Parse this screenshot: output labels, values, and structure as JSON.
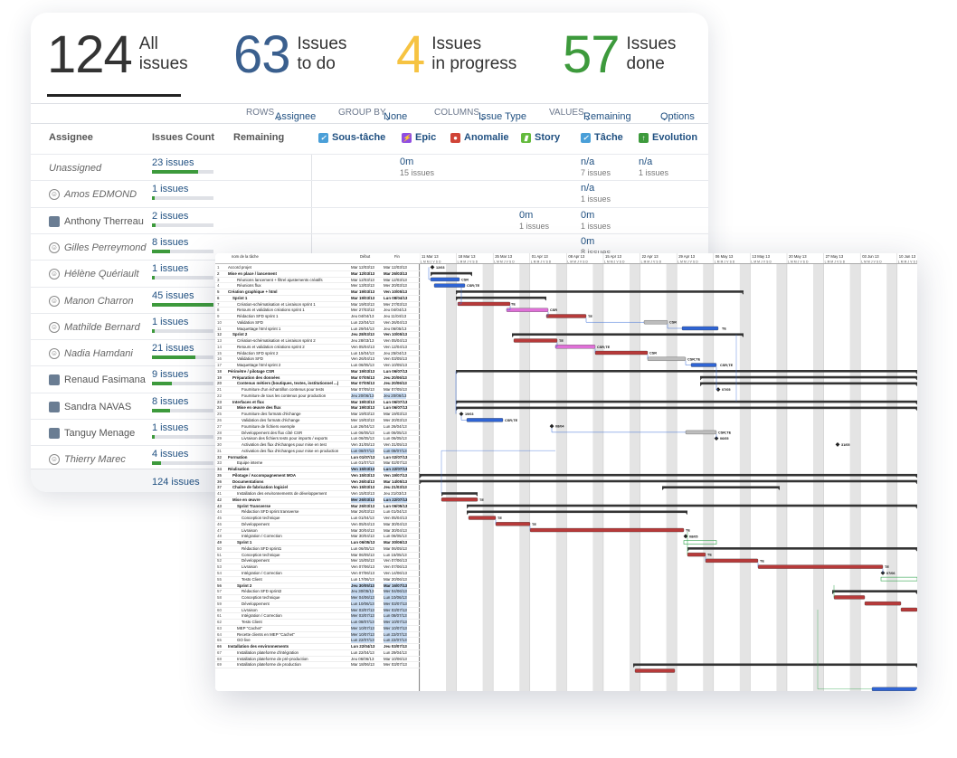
{
  "stats": {
    "all": {
      "num": "124",
      "l1": "All",
      "l2": "issues"
    },
    "todo": {
      "num": "63",
      "l1": "Issues",
      "l2": "to do"
    },
    "progress": {
      "num": "4",
      "l1": "Issues",
      "l2": "in progress"
    },
    "done": {
      "num": "57",
      "l1": "Issues",
      "l2": "done"
    }
  },
  "controls": {
    "rows_label": "ROWS",
    "rows_value": "Assignee",
    "group_label": "GROUP BY",
    "group_value": "None",
    "columns_label": "COLUMNS",
    "columns_value": "Issue Type",
    "values_label": "VALUES",
    "values_value": "Remaining",
    "options": "Options"
  },
  "table": {
    "h_assignee": "Assignee",
    "h_count": "Issues Count",
    "h_remaining": "Remaining",
    "types": [
      "Sous-tâche",
      "Epic",
      "Anomalie",
      "Story",
      "Tâche",
      "Evolution"
    ],
    "type_colors": [
      "#4a9fd8",
      "#904ee2",
      "#d04437",
      "#63ba3c",
      "#4a9fd8",
      "#3d9a3c"
    ],
    "rows": [
      {
        "name": "Unassigned",
        "count": "23 issues",
        "pct": 0.75,
        "italic": true,
        "avatar": "none"
      },
      {
        "name": "Amos EDMOND",
        "count": "1 issues",
        "pct": 0.04,
        "italic": true,
        "avatar": "default"
      },
      {
        "name": "Anthony Therreau",
        "count": "2 issues",
        "pct": 0.06,
        "italic": false,
        "avatar": "photo"
      },
      {
        "name": "Gilles Perreymond",
        "count": "8 issues",
        "pct": 0.3,
        "italic": true,
        "avatar": "default"
      },
      {
        "name": "Hélène Quériault",
        "count": "1 issues",
        "pct": 0.04,
        "italic": true,
        "avatar": "default"
      },
      {
        "name": "Manon Charron",
        "count": "45 issues",
        "pct": 1.0,
        "italic": true,
        "avatar": "default"
      },
      {
        "name": "Mathilde Bernard",
        "count": "1 issues",
        "pct": 0.04,
        "italic": true,
        "avatar": "default"
      },
      {
        "name": "Nadia Hamdani",
        "count": "21 issues",
        "pct": 0.7,
        "italic": true,
        "avatar": "default"
      },
      {
        "name": "Renaud Fasimana",
        "count": "9 issues",
        "pct": 0.32,
        "italic": false,
        "avatar": "photo"
      },
      {
        "name": "Sandra NAVAS",
        "count": "8 issues",
        "pct": 0.3,
        "italic": false,
        "avatar": "photo"
      },
      {
        "name": "Tanguy Menage",
        "count": "1 issues",
        "pct": 0.04,
        "italic": false,
        "avatar": "photo"
      },
      {
        "name": "Thierry Marec",
        "count": "4 issues",
        "pct": 0.15,
        "italic": true,
        "avatar": "default"
      }
    ],
    "cells": [
      {
        "row": 0,
        "col": "epic",
        "v": "0m",
        "s": "15 issues"
      },
      {
        "row": 0,
        "col": "tache",
        "v": "n/a",
        "s": "7 issues"
      },
      {
        "row": 0,
        "col": "evolution",
        "v": "n/a",
        "s": "1 issues"
      },
      {
        "row": 1,
        "col": "tache",
        "v": "n/a",
        "s": "1 issues"
      },
      {
        "row": 2,
        "col": "story",
        "v": "0m",
        "s": "1 issues"
      },
      {
        "row": 2,
        "col": "tache",
        "v": "0m",
        "s": "1 issues"
      },
      {
        "row": 3,
        "col": "tache",
        "v": "0m",
        "s": "8 issues"
      }
    ],
    "total": "124 issues"
  },
  "gantt": {
    "h_name": "nom de la tâche",
    "h_start": "Début",
    "h_end": "Fin",
    "weeks": [
      "11 Mar 13",
      "18 Mar 13",
      "25 Mar 13",
      "01 Apr 13",
      "08 Apr 13",
      "15 Apr 13",
      "22 Apr 13",
      "29 Apr 13",
      "06 May 13",
      "13 May 13",
      "20 May 13",
      "27 May 13",
      "03 Jun 13",
      "10 Jun 13"
    ],
    "tasks": [
      {
        "n": "1",
        "t": "Accord projet",
        "d1": "Mar 12/03/13",
        "d2": "Mar 12/03/13",
        "b": 0,
        "i": 0
      },
      {
        "n": "2",
        "t": "Mise en place / lancement",
        "d1": "Mar 12/03/13",
        "d2": "Mar 26/03/13",
        "b": 1,
        "i": 0
      },
      {
        "n": "3",
        "t": "Réunions lancement + filtrel ajustements créatifs",
        "d1": "Mar 12/03/13",
        "d2": "Mar 12/03/13",
        "b": 0,
        "i": 2
      },
      {
        "n": "4",
        "t": "Réunions flux",
        "d1": "Mer 13/03/13",
        "d2": "Mer 20/03/13",
        "b": 0,
        "i": 2
      },
      {
        "n": "5",
        "t": "Création graphique + html",
        "d1": "Mar 19/03/13",
        "d2": "Ven 10/05/13",
        "b": 1,
        "i": 0
      },
      {
        "n": "6",
        "t": "Sprint 1",
        "d1": "Mar 19/03/13",
        "d2": "Lun 08/04/13",
        "b": 1,
        "i": 1
      },
      {
        "n": "7",
        "t": "Création-schématisation et Livraison sprint 1",
        "d1": "Mar 19/03/13",
        "d2": "Mer 27/03/13",
        "b": 0,
        "i": 2
      },
      {
        "n": "8",
        "t": "Retours et validation créations sprint 1",
        "d1": "Mer 27/03/13",
        "d2": "Jeu 04/04/13",
        "b": 0,
        "i": 2
      },
      {
        "n": "9",
        "t": "Rédaction SFD sprint 1",
        "d1": "Jeu 04/04/13",
        "d2": "Jeu 11/04/13",
        "b": 0,
        "i": 2
      },
      {
        "n": "10",
        "t": "Validation SFD",
        "d1": "Lun 22/04/13",
        "d2": "Ven 26/04/13",
        "b": 0,
        "i": 2
      },
      {
        "n": "11",
        "t": "Maquettage html sprint 1",
        "d1": "Lun 29/04/13",
        "d2": "Jeu 06/05/13",
        "b": 0,
        "i": 2
      },
      {
        "n": "12",
        "t": "Sprint 2",
        "d1": "Jeu 28/03/13",
        "d2": "Ven 10/05/13",
        "b": 1,
        "i": 1
      },
      {
        "n": "13",
        "t": "Création-schématisation et Livraison sprint 2",
        "d1": "Jeu 28/03/13",
        "d2": "Ven 05/04/13",
        "b": 0,
        "i": 2
      },
      {
        "n": "14",
        "t": "Retours et validation créations sprint 2",
        "d1": "Ven 05/04/13",
        "d2": "Ven 12/04/13",
        "b": 0,
        "i": 2
      },
      {
        "n": "15",
        "t": "Rédaction SFD sprint 2",
        "d1": "Lun 15/04/13",
        "d2": "Jeu 25/04/13",
        "b": 0,
        "i": 2
      },
      {
        "n": "16",
        "t": "Validation SFD",
        "d1": "Ven 26/04/13",
        "d2": "Ven 03/05/13",
        "b": 0,
        "i": 2
      },
      {
        "n": "17",
        "t": "Maquettage html sprint 2",
        "d1": "Lun 06/05/13",
        "d2": "Ven 10/05/13",
        "b": 0,
        "i": 2
      },
      {
        "n": "18",
        "t": "Périmètre / pilotage CSR",
        "d1": "Mar 19/03/13",
        "d2": "Lun 06/07/13",
        "b": 1,
        "i": 0
      },
      {
        "n": "19",
        "t": "Préparation des données",
        "d1": "Mar 07/05/13",
        "d2": "Jeu 20/06/13",
        "b": 1,
        "i": 1
      },
      {
        "n": "20",
        "t": "Contenus métiers (boutiques, textes, institutionnel ...)",
        "d1": "Mar 07/05/13",
        "d2": "Jeu 20/06/13",
        "b": 1,
        "i": 2
      },
      {
        "n": "21",
        "t": "Fourniture d'un échantillon contenus pour tests",
        "d1": "Mar 07/05/13",
        "d2": "Mar 07/05/13",
        "b": 0,
        "i": 3
      },
      {
        "n": "22",
        "t": "Fourniture de tous les contenus pour production",
        "d1": "Jeu 20/06/13",
        "d2": "Jeu 20/06/13",
        "b": 0,
        "i": 3,
        "hl": 1
      },
      {
        "n": "23",
        "t": "Interfaces et flux",
        "d1": "Mar 19/03/13",
        "d2": "Lun 06/07/13",
        "b": 1,
        "i": 1
      },
      {
        "n": "24",
        "t": "Mise en œuvre des flux",
        "d1": "Mar 19/03/13",
        "d2": "Lun 06/07/13",
        "b": 1,
        "i": 2
      },
      {
        "n": "25",
        "t": "Fourniture des formats d'échange",
        "d1": "Mar 19/03/13",
        "d2": "Mar 19/03/13",
        "b": 0,
        "i": 3
      },
      {
        "n": "26",
        "t": "Validation des formats d'échange",
        "d1": "Mer 19/03/13",
        "d2": "Mer 20/03/13",
        "b": 0,
        "i": 3
      },
      {
        "n": "27",
        "t": "Fourniture de fichiers exemple",
        "d1": "Lun 26/04/13",
        "d2": "Lun 26/04/13",
        "b": 0,
        "i": 3
      },
      {
        "n": "28",
        "t": "Développement des flux côté CSR",
        "d1": "Lun 06/05/13",
        "d2": "Lun 06/05/13",
        "b": 0,
        "i": 3
      },
      {
        "n": "29",
        "t": "Livraison des fichiers tests pour imports / exports",
        "d1": "Lun 06/05/13",
        "d2": "Lun 06/05/13",
        "b": 0,
        "i": 3
      },
      {
        "n": "30",
        "t": "Activation des flux d'échanges pour mise en test",
        "d1": "Ven 31/05/13",
        "d2": "Ven 31/05/13",
        "b": 0,
        "i": 3
      },
      {
        "n": "31",
        "t": "Activation des flux d'échanges pour mise en production",
        "d1": "Lun 08/07/13",
        "d2": "Lun 08/07/13",
        "b": 0,
        "i": 3,
        "hl": 1
      },
      {
        "n": "32",
        "t": "Formation",
        "d1": "Lun 01/07/13",
        "d2": "Lun 02/07/13",
        "b": 1,
        "i": 0
      },
      {
        "n": "33",
        "t": "Equipe interne",
        "d1": "Lun 01/07/13",
        "d2": "Mar 02/07/13",
        "b": 0,
        "i": 2
      },
      {
        "n": "34",
        "t": "Réalisation",
        "d1": "Ven 15/03/13",
        "d2": "Lun 22/07/13",
        "b": 1,
        "i": 0,
        "hl": 1
      },
      {
        "n": "35",
        "t": "Pilotage / Accompagnement MOA",
        "d1": "Ven 15/03/13",
        "d2": "Ven 19/07/13",
        "b": 1,
        "i": 1
      },
      {
        "n": "36",
        "t": "Documentations",
        "d1": "Ven 26/04/13",
        "d2": "Mar 14/05/13",
        "b": 1,
        "i": 1
      },
      {
        "n": "37",
        "t": "Chaîne de fabrication logiciel",
        "d1": "Ven 15/03/13",
        "d2": "Jeu 21/03/13",
        "b": 1,
        "i": 1
      },
      {
        "n": "41",
        "t": "Installation des environnements de développement",
        "d1": "Ven 15/03/13",
        "d2": "Jeu 21/03/13",
        "b": 0,
        "i": 2
      },
      {
        "n": "42",
        "t": "Mise en œuvre",
        "d1": "Mer 26/03/13",
        "d2": "Lun 22/07/13",
        "b": 1,
        "i": 1,
        "hl": 1
      },
      {
        "n": "43",
        "t": "Sprint Transverse",
        "d1": "Mar 26/03/13",
        "d2": "Lun 06/05/13",
        "b": 1,
        "i": 2
      },
      {
        "n": "44",
        "t": "Rédaction SFD sprint transverse",
        "d1": "Mar 26/03/13",
        "d2": "Lun 01/04/13",
        "b": 0,
        "i": 3
      },
      {
        "n": "45",
        "t": "Conception technique",
        "d1": "Lun 01/04/13",
        "d2": "Ven 05/04/13",
        "b": 0,
        "i": 3
      },
      {
        "n": "46",
        "t": "Développement",
        "d1": "Ven 05/04/13",
        "d2": "Mar 30/04/13",
        "b": 0,
        "i": 3
      },
      {
        "n": "47",
        "t": "Livraison",
        "d1": "Mar 30/04/13",
        "d2": "Mar 30/04/13",
        "b": 0,
        "i": 3
      },
      {
        "n": "48",
        "t": "Intégration / Correction",
        "d1": "Mar 30/04/13",
        "d2": "Lun 06/05/13",
        "b": 0,
        "i": 3
      },
      {
        "n": "49",
        "t": "Sprint 1",
        "d1": "Lun 06/05/13",
        "d2": "Mar 30/06/13",
        "b": 1,
        "i": 2
      },
      {
        "n": "50",
        "t": "Rédaction SFD sprint1",
        "d1": "Lun 06/05/13",
        "d2": "Mar 06/05/13",
        "b": 0,
        "i": 3
      },
      {
        "n": "51",
        "t": "Conception technique",
        "d1": "Mar 06/05/13",
        "d2": "Lun 15/05/13",
        "b": 0,
        "i": 3
      },
      {
        "n": "52",
        "t": "Développement",
        "d1": "Mer 15/05/13",
        "d2": "Ven 07/06/13",
        "b": 0,
        "i": 3
      },
      {
        "n": "53",
        "t": "Livraison",
        "d1": "Ven 07/06/13",
        "d2": "Ven 07/06/13",
        "b": 0,
        "i": 3
      },
      {
        "n": "54",
        "t": "Intégration / Correction",
        "d1": "Ven 07/06/13",
        "d2": "Ven 14/06/13",
        "b": 0,
        "i": 3
      },
      {
        "n": "55",
        "t": "Tests Client",
        "d1": "Lun 17/06/13",
        "d2": "Mar 20/06/13",
        "b": 0,
        "i": 3
      },
      {
        "n": "56",
        "t": "Sprint 2",
        "d1": "Jeu 30/05/13",
        "d2": "Mar 16/07/13",
        "b": 1,
        "i": 2,
        "hl": 1
      },
      {
        "n": "57",
        "t": "Rédaction SFD sprint2",
        "d1": "Jeu 30/05/13",
        "d2": "Mer 04/06/13",
        "b": 0,
        "i": 3,
        "hl": 1
      },
      {
        "n": "58",
        "t": "Conception technique",
        "d1": "Mer 04/06/13",
        "d2": "Lun 10/06/13",
        "b": 0,
        "i": 3,
        "hl": 1
      },
      {
        "n": "59",
        "t": "Développement",
        "d1": "Lun 10/06/13",
        "d2": "Mer 03/07/13",
        "b": 0,
        "i": 3,
        "hl": 1
      },
      {
        "n": "60",
        "t": "Livraison",
        "d1": "Mer 03/07/13",
        "d2": "Mer 03/07/13",
        "b": 0,
        "i": 3,
        "hl": 1
      },
      {
        "n": "61",
        "t": "Intégration / Correction",
        "d1": "Mer 03/07/13",
        "d2": "Lun 08/07/13",
        "b": 0,
        "i": 3,
        "hl": 1
      },
      {
        "n": "62",
        "t": "Tests Client",
        "d1": "Lun 08/07/13",
        "d2": "Mer 10/07/13",
        "b": 0,
        "i": 3,
        "hl": 1
      },
      {
        "n": "63",
        "t": "MEP \"Cachet\"",
        "d1": "Mer 10/07/13",
        "d2": "Mer 10/07/13",
        "b": 0,
        "i": 2,
        "hl": 1
      },
      {
        "n": "64",
        "t": "Recette clients en MEP \"Cachet\"",
        "d1": "Mer 10/07/13",
        "d2": "Lun 22/07/13",
        "b": 0,
        "i": 2,
        "hl": 1
      },
      {
        "n": "65",
        "t": "GO live",
        "d1": "Lun 22/07/13",
        "d2": "Lun 22/07/13",
        "b": 0,
        "i": 2,
        "hl": 1
      },
      {
        "n": "66",
        "t": "Installation des environnements",
        "d1": "Lun 22/04/13",
        "d2": "Jeu 03/07/13",
        "b": 1,
        "i": 0
      },
      {
        "n": "67",
        "t": "Installation plateforme d'intégration",
        "d1": "Lun 22/04/13",
        "d2": "Lun 29/04/13",
        "b": 0,
        "i": 2
      },
      {
        "n": "68",
        "t": "Installation plateforme de pré-production",
        "d1": "Jeu 06/06/13",
        "d2": "Mar 10/06/13",
        "b": 0,
        "i": 2
      },
      {
        "n": "69",
        "t": "Installation plateforme de production",
        "d1": "Mar 18/06/13",
        "d2": "Mer 03/07/13",
        "b": 0,
        "i": 2
      }
    ],
    "bar_labels": [
      "CSR",
      "CSR;TE",
      "TE",
      "CSR",
      "TE",
      "CSR",
      "TE",
      "TE",
      "CSR;TE",
      "CSR",
      "CSR;TE",
      "CSR;TE",
      "CSR;TE",
      "CSR;TE",
      "TE",
      "TE",
      "TE",
      "TE",
      "TE",
      "TE",
      "TE"
    ],
    "milestone_labels": [
      "12/03",
      "07/05",
      "19/03",
      "08/04",
      "06/05",
      "31/05",
      "08/05",
      "07/06",
      "16/05"
    ]
  },
  "colors": {
    "bar_done": "#2f64d4",
    "bar_task": "#b73a3a",
    "bar_pink": "#e070d8",
    "bar_grey": "#bdbdbd",
    "summary": "#333333",
    "grid_shade": "#e4e4e4",
    "link": "#3c6fd8",
    "link_green": "#2ea34a"
  }
}
